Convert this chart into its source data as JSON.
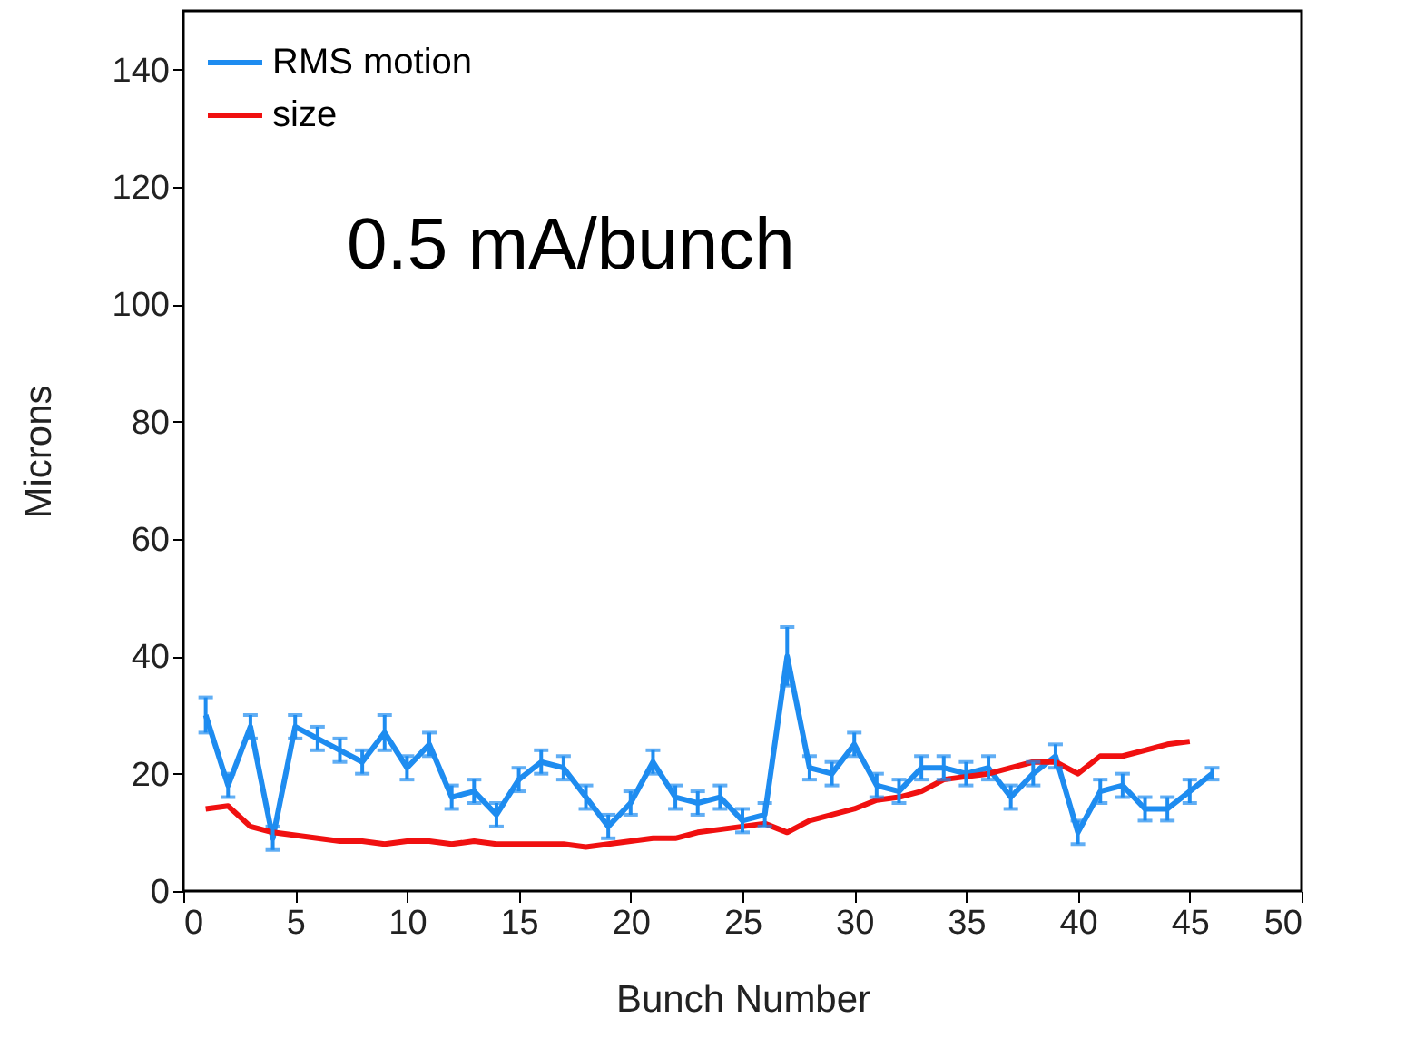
{
  "chart_data": {
    "type": "line",
    "xlabel": "Bunch Number",
    "ylabel": "Microns",
    "annotations": [
      "0.5 mA/bunch"
    ],
    "xlim": [
      0,
      50
    ],
    "xticks": [
      0,
      5,
      10,
      15,
      20,
      25,
      30,
      35,
      40,
      45,
      50
    ],
    "ylim": [
      0,
      150
    ],
    "yticks": [
      0,
      20,
      40,
      60,
      80,
      100,
      120,
      140
    ],
    "grid": false,
    "legend": "top left",
    "line_style": "solid",
    "series": [
      {
        "name": "RMS motion",
        "color": "#1e8cf0",
        "x": [
          1,
          2,
          3,
          4,
          5,
          6,
          7,
          8,
          9,
          10,
          11,
          12,
          13,
          14,
          15,
          16,
          17,
          18,
          19,
          20,
          21,
          22,
          23,
          24,
          25,
          26,
          27,
          28,
          29,
          30,
          31,
          32,
          33,
          34,
          35,
          36,
          37,
          38,
          39,
          40,
          41,
          42,
          43,
          44,
          45,
          46
        ],
        "values": [
          30,
          18,
          28,
          9,
          28,
          26,
          24,
          22,
          27,
          21,
          25,
          16,
          17,
          13,
          19,
          22,
          21,
          16,
          11,
          15,
          22,
          16,
          15,
          16,
          12,
          13,
          40,
          21,
          20,
          25,
          18,
          17,
          21,
          21,
          20,
          21,
          16,
          20,
          23,
          10,
          17,
          18,
          14,
          14,
          17,
          20
        ],
        "errors": [
          3,
          2,
          2,
          2,
          2,
          2,
          2,
          2,
          3,
          2,
          2,
          2,
          2,
          2,
          2,
          2,
          2,
          2,
          2,
          2,
          2,
          2,
          2,
          2,
          2,
          2,
          5,
          2,
          2,
          2,
          2,
          2,
          2,
          2,
          2,
          2,
          2,
          2,
          2,
          2,
          2,
          2,
          2,
          2,
          2,
          1
        ]
      },
      {
        "name": "size",
        "color": "#f01010",
        "x": [
          1,
          2,
          3,
          4,
          5,
          6,
          7,
          8,
          9,
          10,
          11,
          12,
          13,
          14,
          15,
          16,
          17,
          18,
          19,
          20,
          21,
          22,
          23,
          24,
          25,
          26,
          27,
          28,
          29,
          30,
          31,
          32,
          33,
          34,
          35,
          36,
          37,
          38,
          39,
          40,
          41,
          42,
          43,
          44,
          45
        ],
        "values": [
          14,
          14.5,
          11,
          10,
          9.5,
          9,
          8.5,
          8.5,
          8,
          8.5,
          8.5,
          8,
          8.5,
          8,
          8,
          8,
          8,
          7.5,
          8,
          8.5,
          9,
          9,
          10,
          10.5,
          11,
          11.5,
          10,
          12,
          13,
          14,
          15.5,
          16,
          17,
          19,
          19.5,
          20,
          21,
          22,
          22,
          20,
          23,
          23,
          24,
          25,
          25.5
        ]
      }
    ]
  }
}
